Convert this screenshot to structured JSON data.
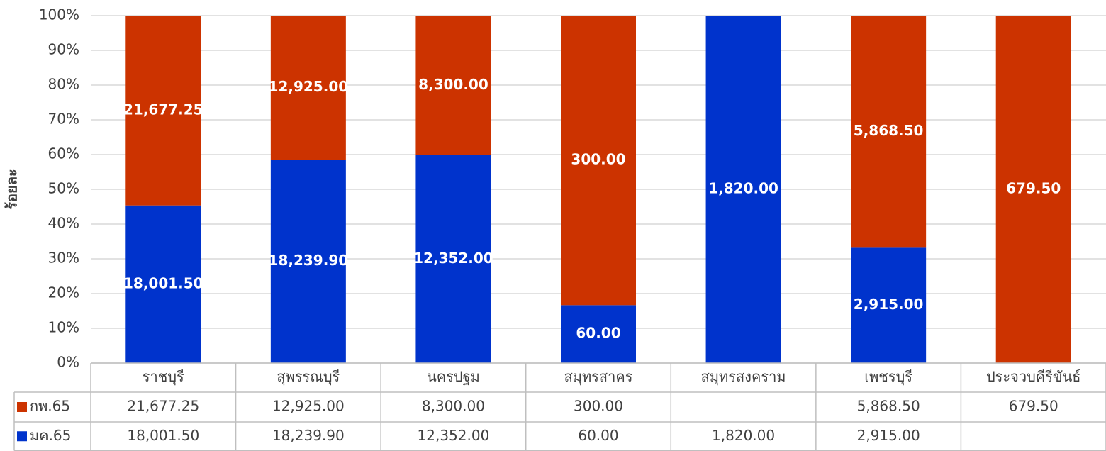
{
  "chart_data": {
    "type": "stacked_percent_bar",
    "y_label": "ร้อยละ",
    "categories": [
      "ราชบุรี",
      "สุพรรณบุรี",
      "นครปฐม",
      "สมุทรสาคร",
      "สมุทรสงคราม",
      "เพชรบุรี",
      "ประจวบคีรีขันธ์"
    ],
    "series": [
      {
        "name": "กพ.65",
        "color": "#cc3300",
        "values": [
          21677.25,
          12925,
          8300,
          300,
          null,
          5868.5,
          679.5
        ],
        "value_labels": [
          "21,677.25",
          "12,925.00",
          "8,300.00",
          "300.00",
          null,
          "5,868.50",
          "679.50"
        ]
      },
      {
        "name": "มค.65",
        "color": "#0033cc",
        "values": [
          18001.5,
          18239.9,
          12352,
          60,
          1820,
          2915,
          null
        ],
        "value_labels": [
          "18,001.50",
          "18,239.90",
          "12,352.00",
          "60.00",
          "1,820.00",
          "2,915.00",
          null
        ]
      }
    ],
    "ylim": [
      0,
      100
    ],
    "yticks": [
      {
        "value": 0,
        "label": "0%"
      },
      {
        "value": 10,
        "label": "10%"
      },
      {
        "value": 20,
        "label": "20%"
      },
      {
        "value": 30,
        "label": "30%"
      },
      {
        "value": 40,
        "label": "40%"
      },
      {
        "value": 50,
        "label": "50%"
      },
      {
        "value": 60,
        "label": "60%"
      },
      {
        "value": 70,
        "label": "70%"
      },
      {
        "value": 80,
        "label": "80%"
      },
      {
        "value": 90,
        "label": "90%"
      },
      {
        "value": 100,
        "label": "100%"
      }
    ],
    "grid": true
  }
}
